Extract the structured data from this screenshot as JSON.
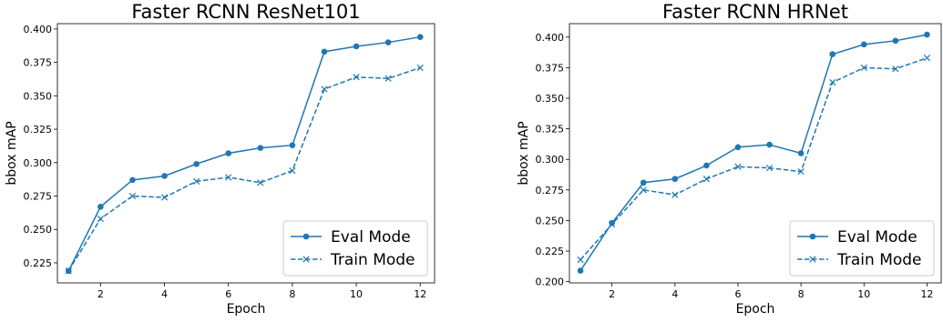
{
  "chart_data": [
    {
      "type": "line",
      "title": "Faster RCNN ResNet101",
      "xlabel": "Epoch",
      "ylabel": "bbox mAP",
      "xlim": [
        0.65,
        12.45
      ],
      "ylim": [
        0.21,
        0.404
      ],
      "x": [
        1,
        2,
        3,
        4,
        5,
        6,
        7,
        8,
        9,
        10,
        11,
        12
      ],
      "xticks": [
        2,
        4,
        6,
        8,
        10,
        12
      ],
      "yticks": [
        0.225,
        0.25,
        0.275,
        0.3,
        0.325,
        0.35,
        0.375,
        0.4
      ],
      "ytick_labels": [
        "0.225",
        "0.250",
        "0.275",
        "0.300",
        "0.325",
        "0.350",
        "0.375",
        "0.400"
      ],
      "legend_position": "lower-right",
      "series": [
        {
          "name": "Eval Mode",
          "style": "solid",
          "marker": "circle",
          "color": "#1f77b4",
          "values": [
            0.219,
            0.267,
            0.287,
            0.29,
            0.299,
            0.307,
            0.311,
            0.313,
            0.383,
            0.387,
            0.39,
            0.394
          ]
        },
        {
          "name": "Train Mode",
          "style": "dashed",
          "marker": "x",
          "color": "#1f77b4",
          "values": [
            0.219,
            0.258,
            0.275,
            0.274,
            0.286,
            0.289,
            0.285,
            0.294,
            0.355,
            0.364,
            0.363,
            0.371
          ]
        }
      ]
    },
    {
      "type": "line",
      "title": "Faster RCNN HRNet",
      "xlabel": "Epoch",
      "ylabel": "bbox mAP",
      "xlim": [
        0.65,
        12.45
      ],
      "ylim": [
        0.199,
        0.411
      ],
      "x": [
        1,
        2,
        3,
        4,
        5,
        6,
        7,
        8,
        9,
        10,
        11,
        12
      ],
      "xticks": [
        2,
        4,
        6,
        8,
        10,
        12
      ],
      "yticks": [
        0.2,
        0.225,
        0.25,
        0.275,
        0.3,
        0.325,
        0.35,
        0.375,
        0.4
      ],
      "ytick_labels": [
        "0.200",
        "0.225",
        "0.250",
        "0.275",
        "0.300",
        "0.325",
        "0.350",
        "0.375",
        "0.400"
      ],
      "legend_position": "lower-right",
      "series": [
        {
          "name": "Eval Mode",
          "style": "solid",
          "marker": "circle",
          "color": "#1f77b4",
          "values": [
            0.209,
            0.248,
            0.281,
            0.284,
            0.295,
            0.31,
            0.312,
            0.305,
            0.386,
            0.394,
            0.397,
            0.402
          ]
        },
        {
          "name": "Train Mode",
          "style": "dashed",
          "marker": "x",
          "color": "#1f77b4",
          "values": [
            0.218,
            0.247,
            0.275,
            0.271,
            0.284,
            0.294,
            0.293,
            0.29,
            0.363,
            0.375,
            0.374,
            0.383
          ]
        }
      ]
    }
  ]
}
